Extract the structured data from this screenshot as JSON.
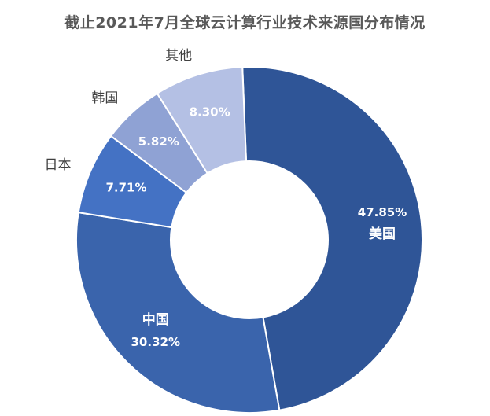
{
  "chart_data": {
    "type": "pie",
    "title": "截止2021年7月全球云计算行业技术来源国分布情况",
    "categories": [
      "美国",
      "中国",
      "日本",
      "韩国",
      "其他"
    ],
    "values": [
      47.85,
      30.32,
      7.71,
      5.82,
      8.3
    ],
    "value_labels": [
      "47.85%",
      "30.32%",
      "7.71%",
      "5.82%",
      "8.30%"
    ],
    "colors": [
      "#2F5597",
      "#3A64AC",
      "#4472C4",
      "#8FA2D4",
      "#B4C0E4"
    ],
    "label_colors": [
      "#ffffff",
      "#ffffff",
      "#ffffff",
      "#ffffff",
      "#ffffff"
    ],
    "category_label_inside": [
      true,
      true,
      false,
      false,
      false
    ],
    "donut": true,
    "legend": "none"
  }
}
